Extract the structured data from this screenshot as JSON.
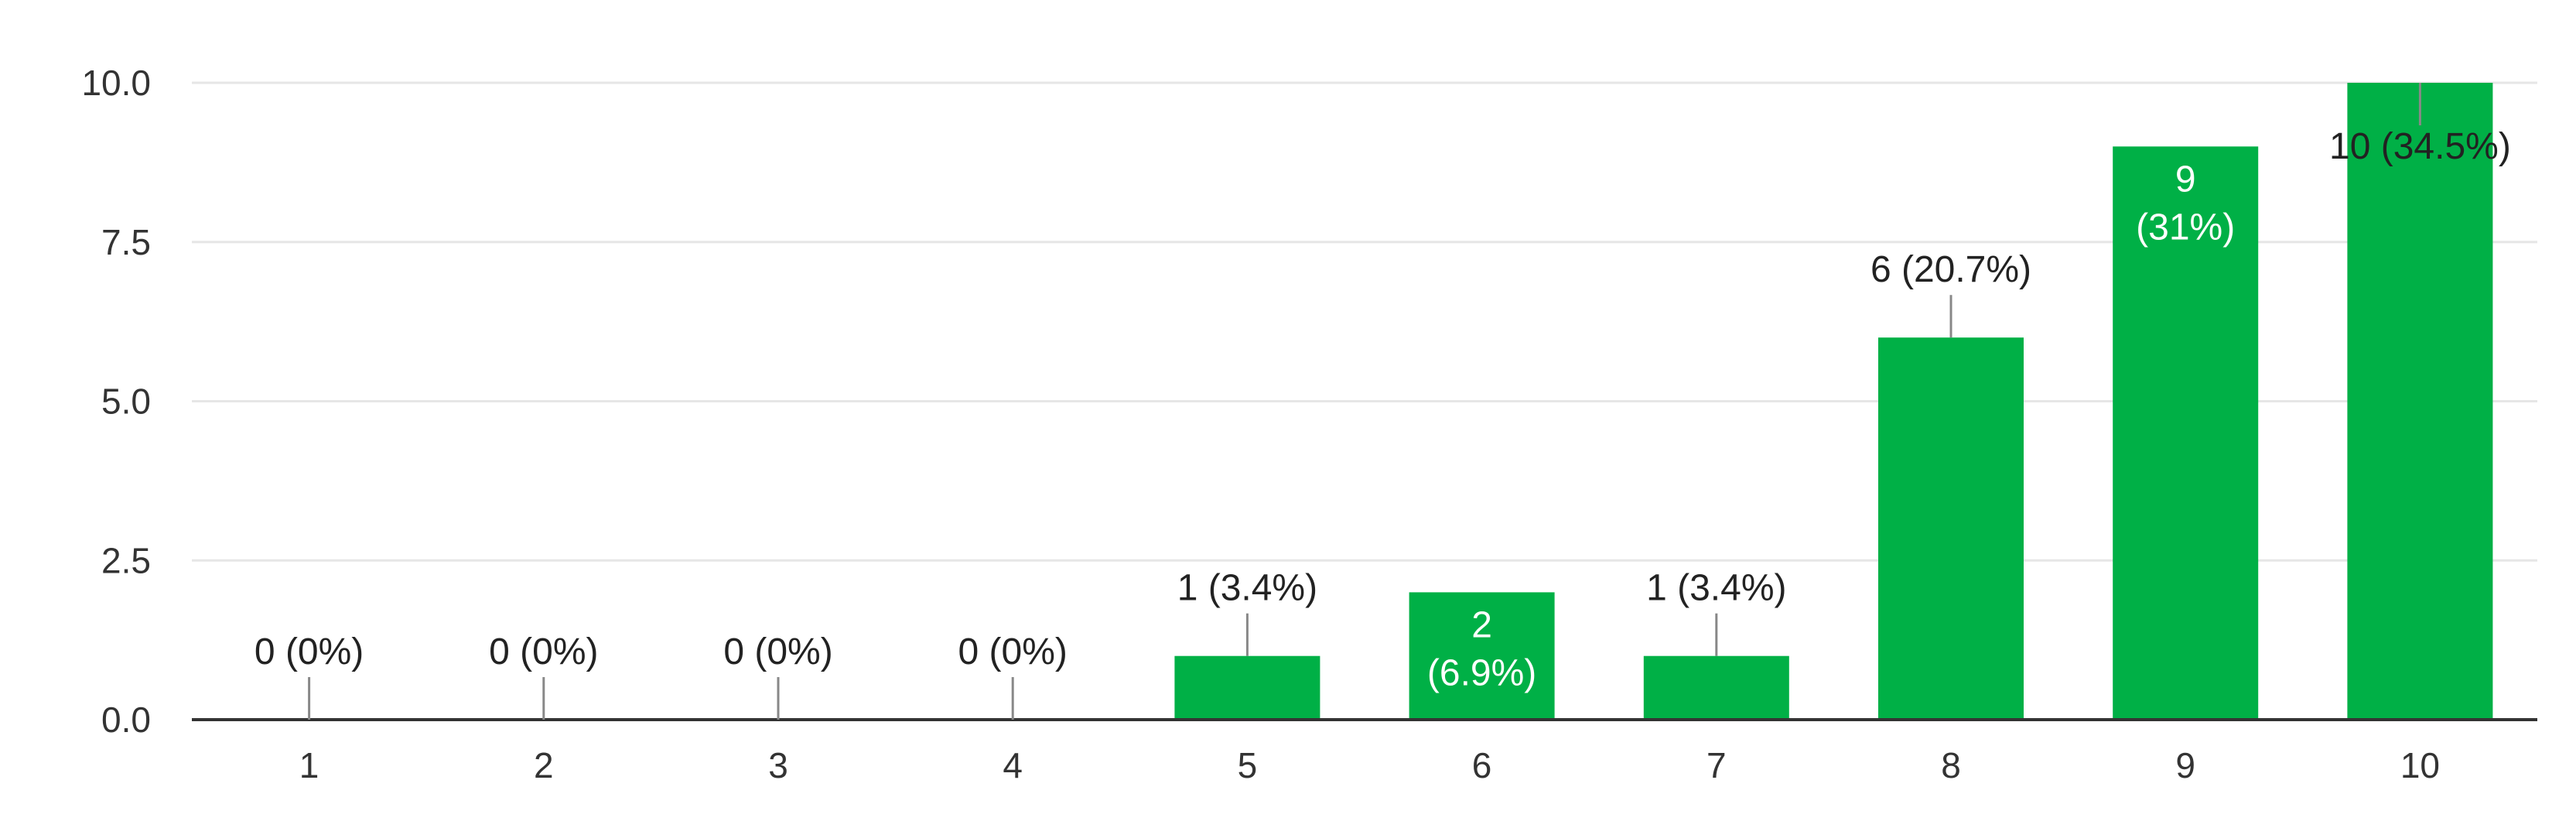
{
  "chart_data": {
    "type": "bar",
    "title": "",
    "xlabel": "",
    "ylabel": "",
    "categories": [
      "1",
      "2",
      "3",
      "4",
      "5",
      "6",
      "7",
      "8",
      "9",
      "10"
    ],
    "values": [
      0,
      0,
      0,
      0,
      1,
      2,
      1,
      6,
      9,
      10
    ],
    "data_labels": [
      "0 (0%)",
      "0 (0%)",
      "0 (0%)",
      "0 (0%)",
      "1 (3.4%)",
      "2\n(6.9%)",
      "1 (3.4%)",
      "6 (20.7%)",
      "9\n(31%)",
      "10 (34.5%)"
    ],
    "label_inside": [
      false,
      false,
      false,
      false,
      false,
      true,
      false,
      false,
      true,
      false
    ],
    "ylim": [
      0,
      10
    ],
    "yticks": [
      0,
      2.5,
      5,
      7.5,
      10
    ],
    "ytick_labels": [
      "0.0",
      "2.5",
      "5.0",
      "7.5",
      "10.0"
    ],
    "grid": true,
    "legend": "none",
    "colors": {
      "bar": "#00b046",
      "grid": "#e6e6e6",
      "axis": "#333333",
      "label_outside": "#222222",
      "label_inside": "#ffffff",
      "leader": "#888888"
    }
  }
}
